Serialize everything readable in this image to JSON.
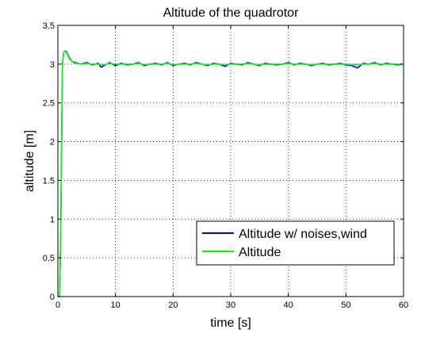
{
  "chart_data": {
    "type": "line",
    "title": "Altitude of the quadrotor",
    "xlabel": "time [s]",
    "ylabel": "altitude [m]",
    "xlim": [
      0,
      60
    ],
    "ylim": [
      0,
      3.5
    ],
    "xticks": [
      0,
      10,
      20,
      30,
      40,
      50,
      60
    ],
    "yticks": [
      0,
      0.5,
      1,
      1.5,
      2,
      2.5,
      3,
      3.5
    ],
    "xtick_labels": [
      "0",
      "10",
      "20",
      "30",
      "40",
      "50",
      "60"
    ],
    "ytick_labels": [
      "0",
      "0.5",
      "1",
      "1.5",
      "2",
      "2.5",
      "3",
      "3.5"
    ],
    "grid": true,
    "legend_position": "bottom-right",
    "series": [
      {
        "name": "Altitude w/ noises,wind",
        "color": "#0000ff",
        "x": [
          0,
          0.3,
          0.5,
          0.7,
          0.8,
          1,
          1.2,
          1.5,
          2,
          2.5,
          3,
          3.5,
          4,
          5,
          6,
          7,
          7.5,
          8,
          9,
          10,
          11,
          12,
          13,
          14,
          15,
          16,
          17,
          18,
          19,
          20,
          21,
          22,
          23,
          24,
          25,
          26,
          27,
          28,
          29,
          30,
          31,
          32,
          33,
          34,
          35,
          36,
          37,
          38,
          39,
          40,
          41,
          42,
          43,
          44,
          45,
          46,
          47,
          48,
          49,
          50,
          51,
          52,
          53,
          54,
          55,
          56,
          57,
          58,
          59,
          59.7
        ],
        "y": [
          0,
          0,
          0.8,
          2.3,
          3.0,
          3.15,
          3.17,
          3.16,
          3.08,
          3.03,
          3.02,
          3.01,
          3.0,
          3.02,
          2.99,
          3.01,
          2.96,
          2.98,
          3.02,
          2.98,
          3.01,
          2.99,
          3.0,
          3.02,
          2.98,
          3.0,
          3.01,
          2.99,
          3.02,
          2.98,
          3.0,
          3.01,
          2.99,
          3.02,
          3.0,
          2.98,
          3.01,
          3.0,
          2.97,
          3.01,
          3.0,
          2.99,
          3.02,
          3.0,
          2.98,
          3.01,
          3.0,
          2.99,
          3.0,
          3.02,
          2.99,
          3.01,
          3.0,
          2.98,
          3.0,
          3.01,
          2.99,
          3.0,
          3.01,
          2.99,
          2.98,
          2.95,
          3.01,
          3.0,
          3.02,
          2.99,
          3.01,
          3.0,
          2.99,
          3.0
        ]
      },
      {
        "name": "Altitude",
        "color": "#00ff00",
        "x": [
          0,
          0.3,
          0.5,
          0.7,
          0.8,
          1,
          1.2,
          1.5,
          2,
          2.5,
          3,
          3.5,
          4,
          5,
          6,
          7,
          7.5,
          8,
          9,
          10,
          11,
          12,
          13,
          14,
          15,
          16,
          17,
          18,
          19,
          20,
          21,
          22,
          23,
          24,
          25,
          26,
          27,
          28,
          29,
          30,
          31,
          32,
          33,
          34,
          35,
          36,
          37,
          38,
          39,
          40,
          41,
          42,
          43,
          44,
          45,
          46,
          47,
          48,
          49,
          50,
          51,
          52,
          53,
          54,
          55,
          56,
          57,
          58,
          59,
          59.7
        ],
        "y": [
          0,
          0,
          0.8,
          2.3,
          3.0,
          3.15,
          3.17,
          3.15,
          3.07,
          3.03,
          3.01,
          3.01,
          3.0,
          3.01,
          3.0,
          3.0,
          2.99,
          2.99,
          3.01,
          3.0,
          3.0,
          3.0,
          3.0,
          3.01,
          2.99,
          3.0,
          3.0,
          3.0,
          3.01,
          2.99,
          3.0,
          3.0,
          3.0,
          3.01,
          3.0,
          2.99,
          3.0,
          3.0,
          2.99,
          3.0,
          3.0,
          3.0,
          3.01,
          3.0,
          2.99,
          3.0,
          3.0,
          3.0,
          3.0,
          3.01,
          3.0,
          3.0,
          3.0,
          2.99,
          3.0,
          3.0,
          3.0,
          3.0,
          3.0,
          3.0,
          2.99,
          2.99,
          3.0,
          3.0,
          3.01,
          3.0,
          3.0,
          3.0,
          3.0,
          3.0
        ]
      }
    ]
  }
}
